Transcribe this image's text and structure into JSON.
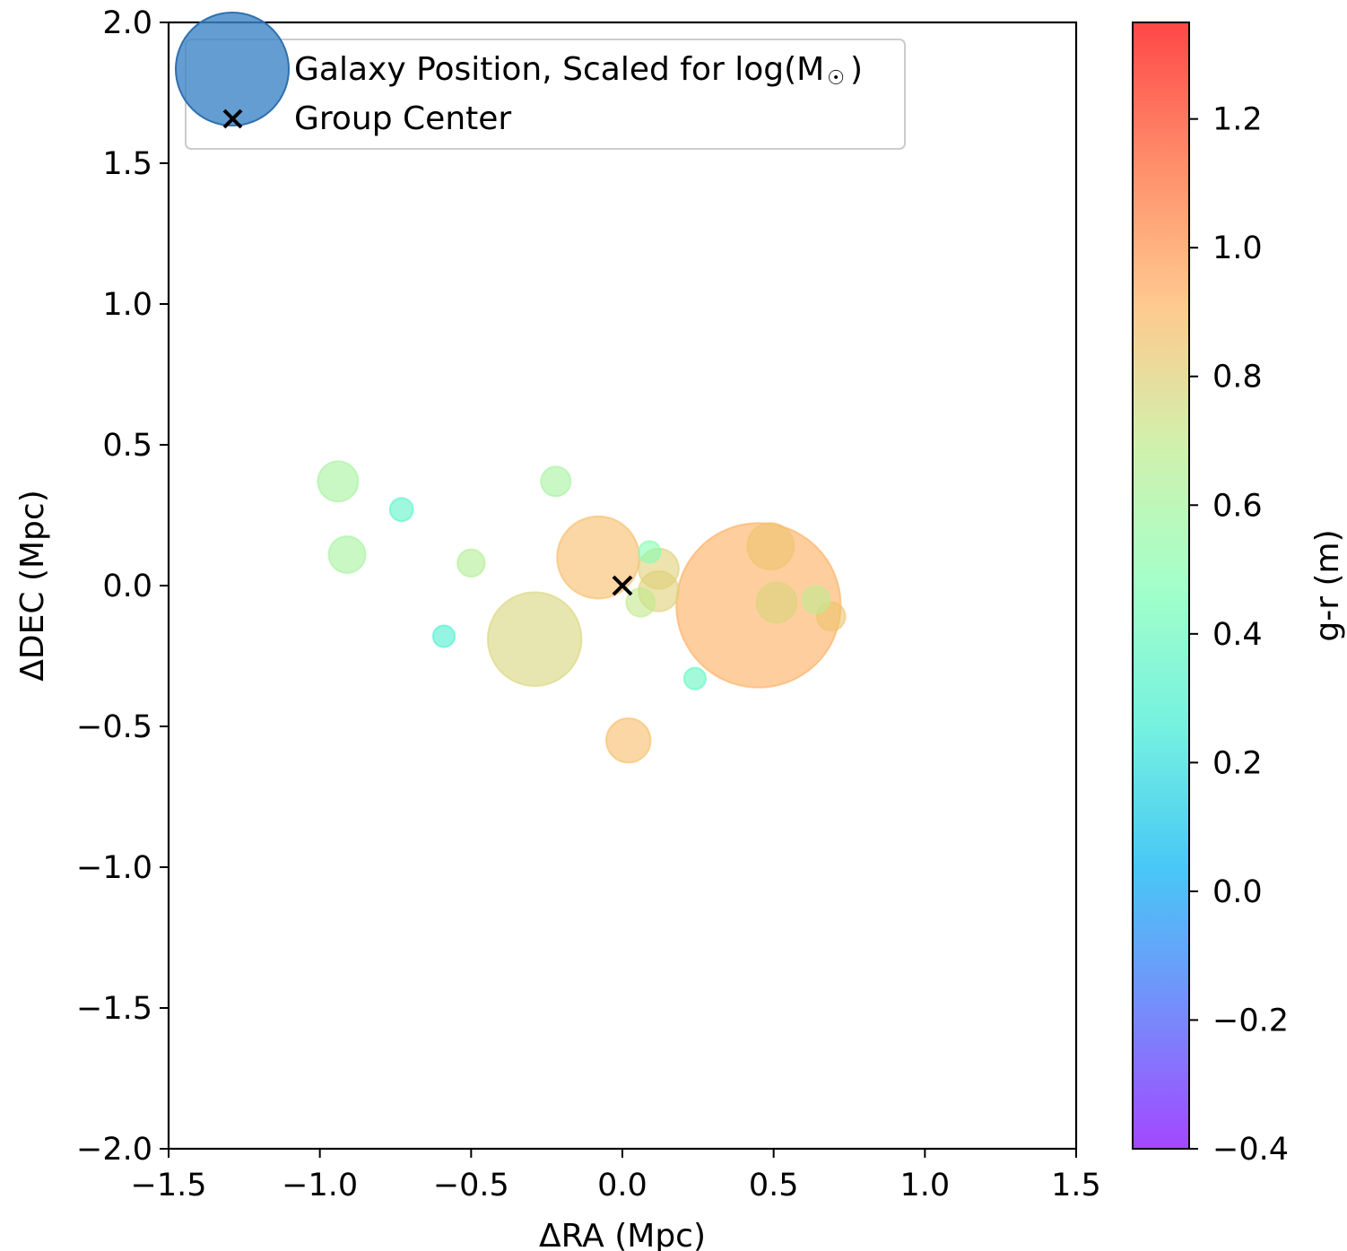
{
  "chart_data": {
    "type": "scatter",
    "title": "",
    "xlabel": "ΔRA (Mpc)",
    "ylabel": "ΔDEC (Mpc)",
    "xlim": [
      -1.5,
      1.5
    ],
    "ylim": [
      -2.0,
      2.0
    ],
    "xticks": [
      "−1.5",
      "−1.0",
      "−0.5",
      "0.0",
      "0.5",
      "1.0",
      "1.5"
    ],
    "yticks": [
      "−2.0",
      "−1.5",
      "−1.0",
      "−0.5",
      "0.0",
      "0.5",
      "1.0",
      "1.5",
      "2.0"
    ],
    "colorbar": {
      "label": "g-r (m)",
      "range": [
        -0.4,
        1.35
      ],
      "ticks": [
        "−0.4",
        "−0.2",
        "0.0",
        "0.2",
        "0.4",
        "0.6",
        "0.8",
        "1.0",
        "1.2"
      ],
      "colormap": "rainbow"
    },
    "legend": {
      "placement": "upper-left",
      "entries": [
        {
          "label": "Galaxy Position, Scaled for log(M",
          "symbol": "circle",
          "color": "#3d85c6"
        },
        {
          "label": "Group Center",
          "symbol": "x",
          "color": "#000000"
        }
      ]
    },
    "series": [
      {
        "name": "Galaxy Position, Scaled for log(M☉)",
        "points": [
          {
            "x": -0.94,
            "y": 0.37,
            "gr": 0.6,
            "size": 2.4
          },
          {
            "x": -0.91,
            "y": 0.11,
            "gr": 0.6,
            "size": 2.0
          },
          {
            "x": -0.73,
            "y": 0.27,
            "gr": 0.35,
            "size": 0.8
          },
          {
            "x": -0.5,
            "y": 0.08,
            "gr": 0.65,
            "size": 1.1
          },
          {
            "x": -0.59,
            "y": -0.18,
            "gr": 0.3,
            "size": 0.7
          },
          {
            "x": -0.22,
            "y": 0.37,
            "gr": 0.6,
            "size": 1.3
          },
          {
            "x": -0.29,
            "y": -0.19,
            "gr": 0.78,
            "size": 13
          },
          {
            "x": -0.08,
            "y": 0.1,
            "gr": 0.88,
            "size": 10
          },
          {
            "x": 0.09,
            "y": 0.12,
            "gr": 0.5,
            "size": 0.7
          },
          {
            "x": 0.12,
            "y": 0.06,
            "gr": 0.8,
            "size": 2.4
          },
          {
            "x": 0.12,
            "y": -0.02,
            "gr": 0.8,
            "size": 2.4
          },
          {
            "x": 0.06,
            "y": -0.06,
            "gr": 0.7,
            "size": 1.2
          },
          {
            "x": 0.24,
            "y": -0.33,
            "gr": 0.38,
            "size": 0.7
          },
          {
            "x": 0.02,
            "y": -0.55,
            "gr": 0.88,
            "size": 2.9
          },
          {
            "x": 0.45,
            "y": -0.07,
            "gr": 0.93,
            "size": 40
          },
          {
            "x": 0.49,
            "y": 0.14,
            "gr": 0.85,
            "size": 3.2
          },
          {
            "x": 0.51,
            "y": -0.06,
            "gr": 0.78,
            "size": 2.4
          },
          {
            "x": 0.64,
            "y": -0.05,
            "gr": 0.68,
            "size": 1.1
          },
          {
            "x": 0.69,
            "y": -0.11,
            "gr": 0.85,
            "size": 1.2
          }
        ]
      },
      {
        "name": "Group Center",
        "points": [
          {
            "x": 0.0,
            "y": 0.0
          }
        ]
      }
    ]
  }
}
